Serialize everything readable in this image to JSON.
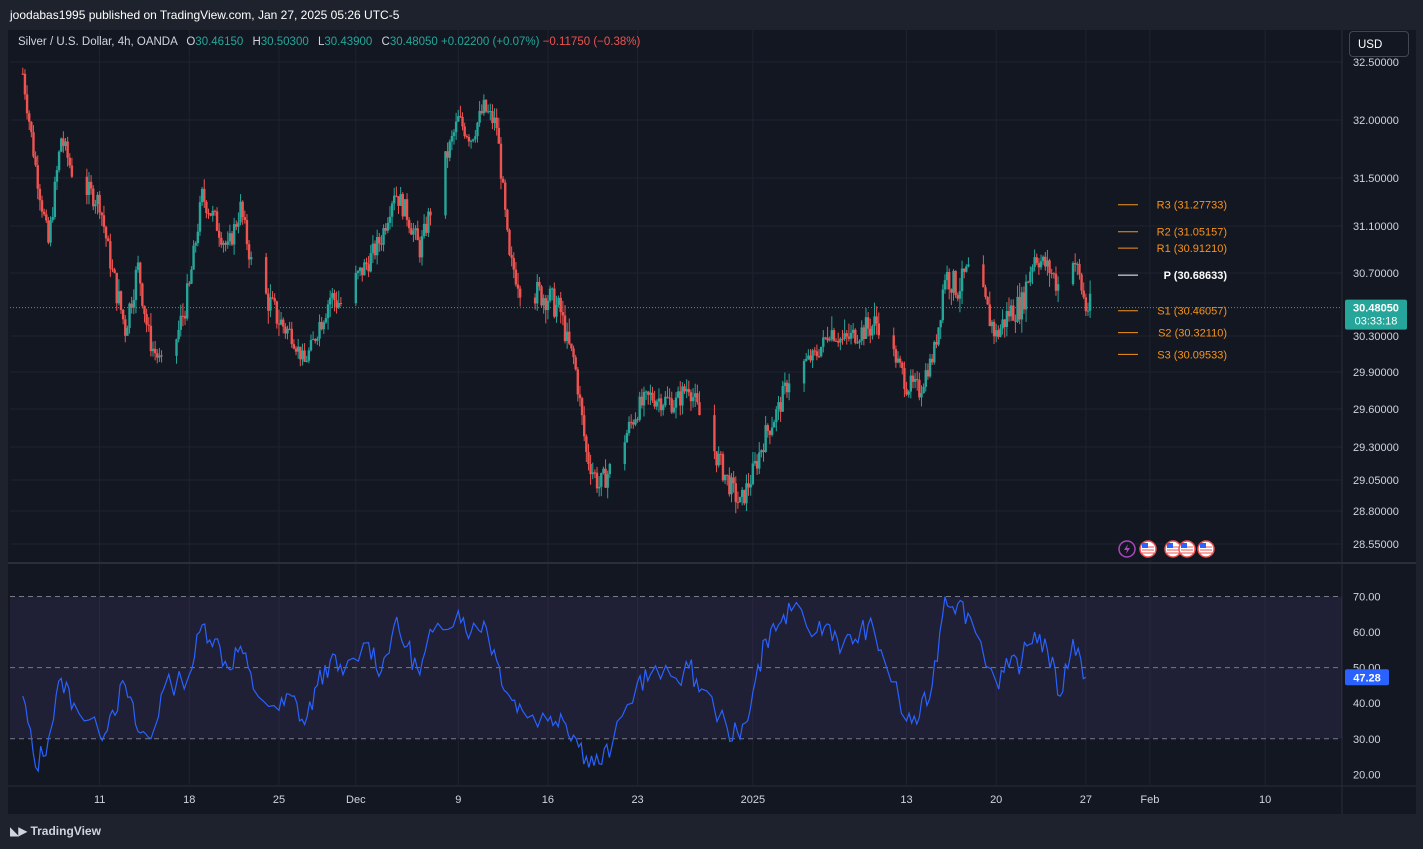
{
  "header": {
    "publisher_text": "joodabas1995 published on TradingView.com, Jan 27, 2025 05:26 UTC-5"
  },
  "legend": {
    "symbol": "Silver / U.S. Dollar, 4h, OANDA",
    "o_label": "O",
    "o_value": "30.46150",
    "h_label": "H",
    "h_value": "30.50300",
    "l_label": "L",
    "l_value": "30.43900",
    "c_label": "C",
    "c_value": "30.48050",
    "change": "+0.02200 (+0.07%)",
    "change2": "−0.11750 (−0.38%)"
  },
  "currency_button": "USD",
  "footer": {
    "brand": "TradingView"
  },
  "colors": {
    "up": "#26a69a",
    "down": "#ef5350",
    "rsi": "#2962ff",
    "pivot_line": "#f7931a",
    "background": "#131722"
  },
  "chart_data": [
    {
      "type": "candlestick",
      "title": "Silver / U.S. Dollar, 4h, OANDA",
      "y_ticks": [
        "32.50000",
        "32.00000",
        "31.50000",
        "31.10000",
        "30.70000",
        "30.30000",
        "29.90000",
        "29.60000",
        "29.30000",
        "29.05000",
        "28.80000",
        "28.55000"
      ],
      "ylim": [
        28.45,
        32.6
      ],
      "x_ticks": [
        "11",
        "18",
        "25",
        "Dec",
        "9",
        "16",
        "23",
        "2025",
        "13",
        "20",
        "27",
        "Feb",
        "10"
      ],
      "x_tick_dates": [
        "2024-11-11",
        "2024-11-18",
        "2024-11-25",
        "2024-12-01",
        "2024-12-09",
        "2024-12-16",
        "2024-12-23",
        "2025-01-01",
        "2025-01-13",
        "2025-01-20",
        "2025-01-27",
        "2025-02-01",
        "2025-02-10"
      ],
      "price_path": {
        "dates": [
          "2024-11-05",
          "2024-11-06",
          "2024-11-07",
          "2024-11-08",
          "2024-11-09",
          "2024-11-11",
          "2024-11-12",
          "2024-11-13",
          "2024-11-14",
          "2024-11-15",
          "2024-11-16",
          "2024-11-18",
          "2024-11-19",
          "2024-11-20",
          "2024-11-21",
          "2024-11-22",
          "2024-11-23",
          "2024-11-25",
          "2024-11-26",
          "2024-11-27",
          "2024-11-28",
          "2024-11-29",
          "2024-11-30",
          "2024-12-02",
          "2024-12-03",
          "2024-12-04",
          "2024-12-05",
          "2024-12-06",
          "2024-12-07",
          "2024-12-09",
          "2024-12-10",
          "2024-12-11",
          "2024-12-12",
          "2024-12-13",
          "2024-12-14",
          "2024-12-16",
          "2024-12-17",
          "2024-12-18",
          "2024-12-19",
          "2024-12-20",
          "2024-12-21",
          "2024-12-23",
          "2024-12-24",
          "2024-12-26",
          "2024-12-27",
          "2024-12-28",
          "2024-12-30",
          "2024-12-31",
          "2025-01-01",
          "2025-01-02",
          "2025-01-03",
          "2025-01-04",
          "2025-01-06",
          "2025-01-07",
          "2025-01-08",
          "2025-01-09",
          "2025-01-10",
          "2025-01-11",
          "2025-01-13",
          "2025-01-14",
          "2025-01-15",
          "2025-01-16",
          "2025-01-17",
          "2025-01-18",
          "2025-01-20",
          "2025-01-21",
          "2025-01-22",
          "2025-01-23",
          "2025-01-24",
          "2025-01-25",
          "2025-01-26",
          "2025-01-27"
        ],
        "close": [
          32.4,
          31.6,
          30.95,
          31.85,
          31.5,
          31.3,
          30.7,
          30.35,
          30.75,
          30.2,
          29.95,
          30.6,
          31.35,
          31.15,
          30.9,
          31.25,
          30.7,
          30.4,
          30.3,
          30.0,
          30.35,
          30.55,
          30.5,
          30.8,
          31.0,
          31.4,
          31.2,
          30.9,
          31.3,
          32.0,
          31.85,
          32.1,
          31.95,
          30.8,
          30.6,
          30.55,
          30.45,
          30.05,
          29.25,
          29.0,
          29.15,
          29.6,
          29.7,
          29.65,
          29.8,
          29.5,
          29.05,
          28.85,
          29.1,
          29.4,
          29.6,
          29.9,
          30.1,
          30.35,
          30.25,
          30.3,
          30.35,
          30.4,
          29.8,
          29.75,
          30.05,
          30.7,
          30.6,
          30.75,
          30.3,
          30.45,
          30.5,
          30.85,
          30.75,
          30.6,
          30.85,
          30.48
        ]
      },
      "current_price": "30.48050",
      "countdown": "03:33:18",
      "pivots": [
        {
          "label": "R3 (31.27733)",
          "value": 31.27733
        },
        {
          "label": "R2 (31.05157)",
          "value": 31.05157
        },
        {
          "label": "R1 (30.91210)",
          "value": 30.9121
        },
        {
          "label": "P (30.68633)",
          "value": 30.68633
        },
        {
          "label": "S1 (30.46057)",
          "value": 30.46057
        },
        {
          "label": "S2 (30.32110)",
          "value": 30.3211
        },
        {
          "label": "S3 (30.09533)",
          "value": 30.09533
        }
      ]
    },
    {
      "type": "line",
      "name": "RSI",
      "y_ticks": [
        "70.00",
        "60.00",
        "50.00",
        "40.00",
        "30.00",
        "20.00"
      ],
      "ylim": [
        17,
        78
      ],
      "bands": [
        70,
        50,
        30
      ],
      "current_value": "47.28",
      "x": [
        "2024-11-05",
        "2024-11-06",
        "2024-11-07",
        "2024-11-08",
        "2024-11-09",
        "2024-11-11",
        "2024-11-12",
        "2024-11-13",
        "2024-11-14",
        "2024-11-15",
        "2024-11-16",
        "2024-11-18",
        "2024-11-19",
        "2024-11-20",
        "2024-11-21",
        "2024-11-22",
        "2024-11-23",
        "2024-11-25",
        "2024-11-26",
        "2024-11-27",
        "2024-11-28",
        "2024-11-29",
        "2024-11-30",
        "2024-12-02",
        "2024-12-03",
        "2024-12-04",
        "2024-12-05",
        "2024-12-06",
        "2024-12-07",
        "2024-12-09",
        "2024-12-10",
        "2024-12-11",
        "2024-12-12",
        "2024-12-13",
        "2024-12-14",
        "2024-12-16",
        "2024-12-17",
        "2024-12-18",
        "2024-12-19",
        "2024-12-20",
        "2024-12-21",
        "2024-12-23",
        "2024-12-24",
        "2024-12-26",
        "2024-12-27",
        "2024-12-28",
        "2024-12-30",
        "2024-12-31",
        "2025-01-01",
        "2025-01-02",
        "2025-01-03",
        "2025-01-04",
        "2025-01-06",
        "2025-01-07",
        "2025-01-08",
        "2025-01-09",
        "2025-01-10",
        "2025-01-11",
        "2025-01-13",
        "2025-01-14",
        "2025-01-15",
        "2025-01-16",
        "2025-01-17",
        "2025-01-18",
        "2025-01-20",
        "2025-01-21",
        "2025-01-22",
        "2025-01-23",
        "2025-01-24",
        "2025-01-25",
        "2025-01-26",
        "2025-01-27"
      ],
      "values": [
        42,
        22,
        30,
        47,
        40,
        31,
        38,
        45,
        32,
        30,
        44,
        48,
        62,
        58,
        50,
        56,
        44,
        38,
        42,
        34,
        45,
        52,
        48,
        57,
        49,
        62,
        56,
        48,
        60,
        66,
        60,
        63,
        52,
        42,
        38,
        35,
        37,
        31,
        25,
        23,
        28,
        46,
        48,
        47,
        50,
        44,
        33,
        30,
        43,
        58,
        62,
        66,
        60,
        62,
        56,
        58,
        62,
        55,
        35,
        36,
        45,
        70,
        68,
        64,
        46,
        50,
        52,
        60,
        55,
        42,
        58,
        47.28
      ]
    }
  ],
  "event_icons": [
    "lightning-icon",
    "us-flag-icon",
    "us-flag-icon",
    "us-flag-icon",
    "us-flag-icon"
  ]
}
